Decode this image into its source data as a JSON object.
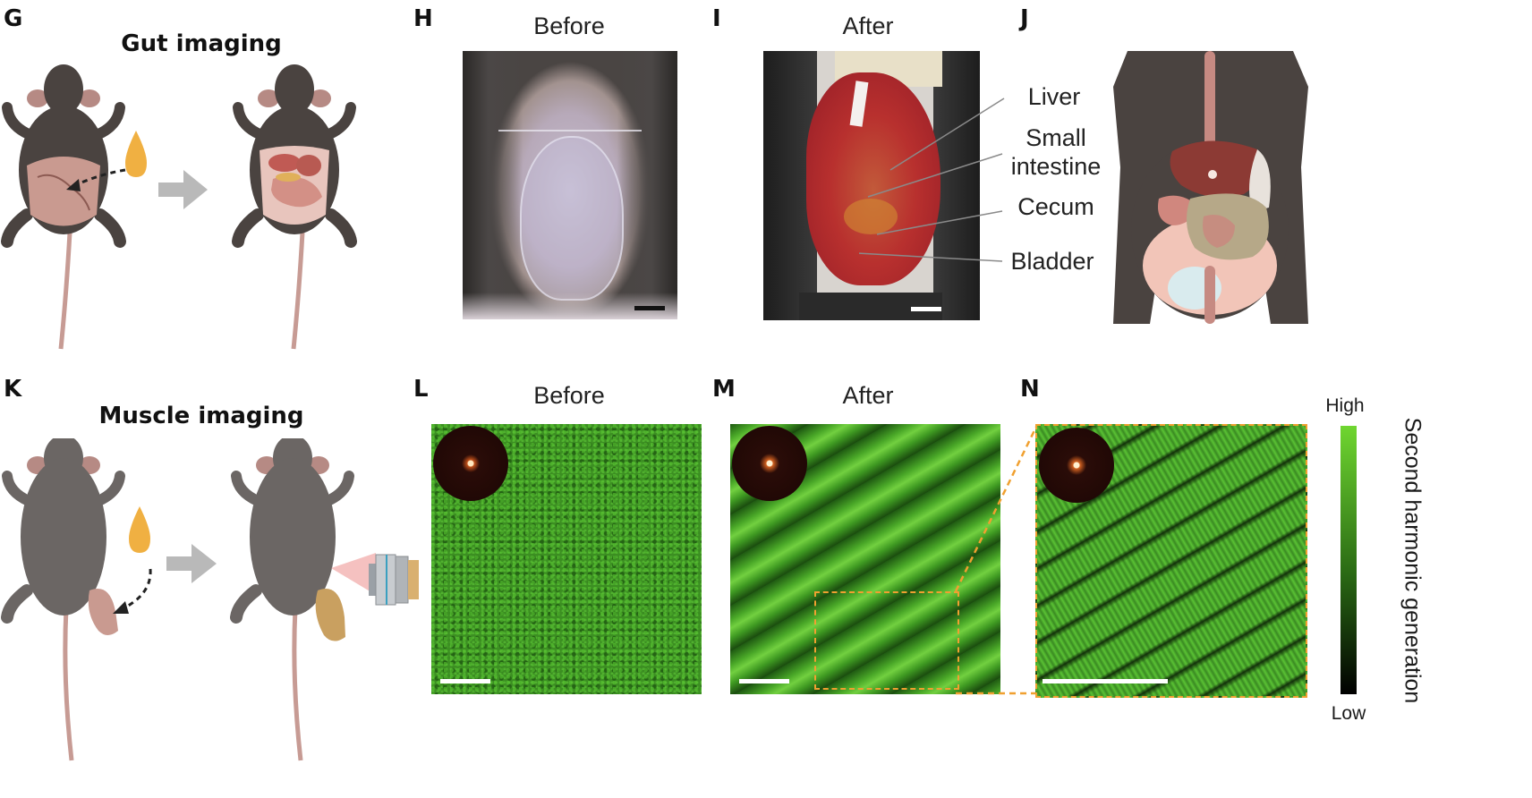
{
  "figure": {
    "panels": {
      "G": {
        "letter": "G",
        "title": "Gut imaging"
      },
      "H": {
        "letter": "H",
        "title": "Before"
      },
      "I": {
        "letter": "I",
        "title": "After"
      },
      "J": {
        "letter": "J"
      },
      "K": {
        "letter": "K",
        "title": "Muscle imaging"
      },
      "L": {
        "letter": "L",
        "title": "Before"
      },
      "M": {
        "letter": "M",
        "title": "After"
      },
      "N": {
        "letter": "N"
      }
    },
    "organ_labels": {
      "liver": "Liver",
      "small_intestine_line1": "Small",
      "small_intestine_line2": "intestine",
      "cecum": "Cecum",
      "bladder": "Bladder"
    },
    "colorbar": {
      "high": "High",
      "low": "Low",
      "label": "Second harmonic generation",
      "color_high": "#6fd630",
      "color_low": "#000000"
    },
    "colors": {
      "mouse_dark": "#4a4340",
      "mouse_gray": "#6b6664",
      "skin_pink": "#c99a90",
      "drop": "#f0b042",
      "arrow_gray": "#b9b9b9",
      "zoom_box": "#f0a030",
      "shg_green": "#4aa828"
    }
  }
}
